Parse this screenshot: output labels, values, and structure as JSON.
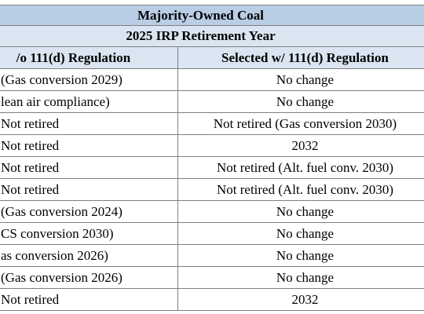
{
  "table": {
    "title": "Majority-Owned Coal",
    "subtitle": "2025 IRP Retirement Year",
    "columns": [
      "/o 111(d) Regulation",
      "Selected w/ 111(d) Regulation"
    ],
    "rows": [
      {
        "without": "(Gas conversion 2029)",
        "with": "No change"
      },
      {
        "without": "lean air compliance)",
        "with": "No change"
      },
      {
        "without": "Not retired",
        "with": "Not retired (Gas conversion 2030)"
      },
      {
        "without": "Not retired",
        "with": "2032"
      },
      {
        "without": "Not retired",
        "with": "Not retired (Alt. fuel conv. 2030)"
      },
      {
        "without": "Not retired",
        "with": "Not retired (Alt. fuel conv. 2030)"
      },
      {
        "without": "(Gas conversion 2024)",
        "with": "No change"
      },
      {
        "without": "CS conversion 2030)",
        "with": "No change"
      },
      {
        "without": "as conversion 2026)",
        "with": "No change"
      },
      {
        "without": "(Gas conversion 2026)",
        "with": "No change"
      },
      {
        "without": "Not retired",
        "with": "2032"
      }
    ]
  }
}
